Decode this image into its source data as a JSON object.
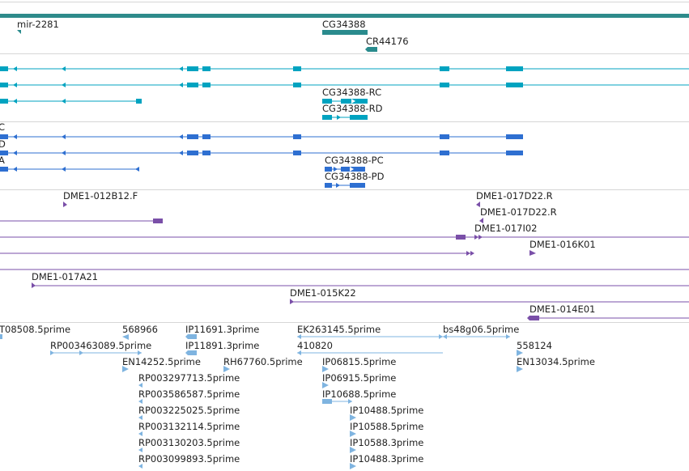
{
  "colors": {
    "chrom": "#2e8b8b",
    "gene": "#2a8b8d",
    "transcript": "#00a3c0",
    "protein": "#2e6fd1",
    "bac": "#7a4fa8",
    "est": "#7fb4e0",
    "divider": "#d6d6d6",
    "text": "#222222"
  },
  "tracks": {
    "genes": [
      {
        "label": "mir-2281"
      },
      {
        "label": "CG34388"
      },
      {
        "label": "CR44176"
      }
    ],
    "transcripts": [
      {
        "label": ""
      },
      {
        "label": ""
      },
      {
        "label": ""
      },
      {
        "label": "CG34388-RC"
      },
      {
        "label": "CG34388-RD"
      }
    ],
    "proteins": [
      {
        "label": "C"
      },
      {
        "label": "D"
      },
      {
        "label": "A"
      },
      {
        "label": "CG34388-PC"
      },
      {
        "label": "CG34388-PD"
      }
    ],
    "bac_ends": [
      {
        "label": "DME1-012B12.F"
      },
      {
        "label": "DME1-017D22.R"
      },
      {
        "label": "DME1-017D22.R"
      },
      {
        "label": "DME1-017I02"
      },
      {
        "label": "DME1-016K01"
      },
      {
        "label": "DME1-017A21"
      },
      {
        "label": "DME1-015K22"
      },
      {
        "label": "DME1-014E01"
      }
    ],
    "ests": [
      {
        "label": "T08508.5prime"
      },
      {
        "label": "568966"
      },
      {
        "label": "IP11691.3prime"
      },
      {
        "label": "EK263145.5prime"
      },
      {
        "label": "bs48g06.5prime"
      },
      {
        "label": "RP003463089.5prime"
      },
      {
        "label": "IP11891.3prime"
      },
      {
        "label": "410820"
      },
      {
        "label": "558124"
      },
      {
        "label": "EN14252.5prime"
      },
      {
        "label": "RH67760.5prime"
      },
      {
        "label": "IP06815.5prime"
      },
      {
        "label": "EN13034.5prime"
      },
      {
        "label": "RP003297713.5prime"
      },
      {
        "label": "IP06915.5prime"
      },
      {
        "label": "RP003586587.5prime"
      },
      {
        "label": "IP10688.5prime"
      },
      {
        "label": "RP003225025.5prime"
      },
      {
        "label": "IP10488.5prime"
      },
      {
        "label": "RP003132114.5prime"
      },
      {
        "label": "IP10588.5prime"
      },
      {
        "label": "RP003130203.5prime"
      },
      {
        "label": "IP10588.3prime"
      },
      {
        "label": "RP003099893.5prime"
      },
      {
        "label": "IP10488.3prime"
      }
    ]
  }
}
